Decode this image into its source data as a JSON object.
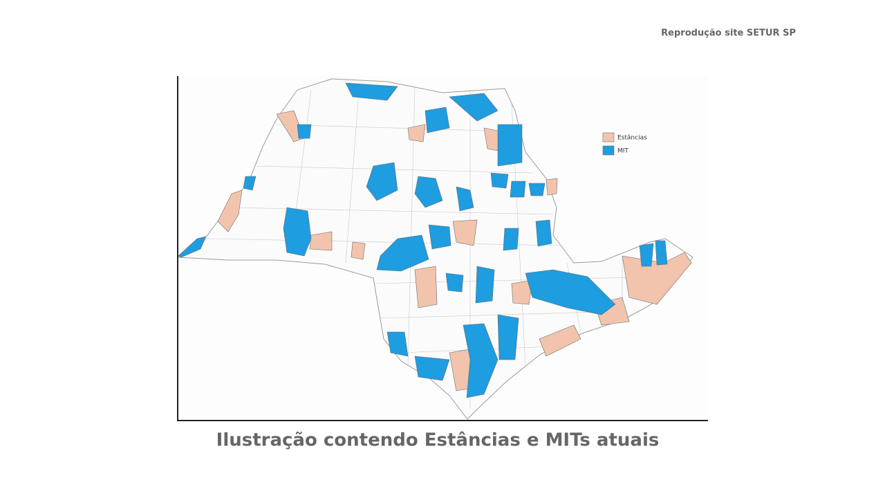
{
  "source": "Reprodução site SETUR SP",
  "legend": [
    {
      "label": "Estâncias",
      "color": "#f2c4ad"
    },
    {
      "label": "MIT",
      "color": "#1e9de0"
    }
  ],
  "caption": "Ilustração contendo Estâncias e MITs atuais"
}
